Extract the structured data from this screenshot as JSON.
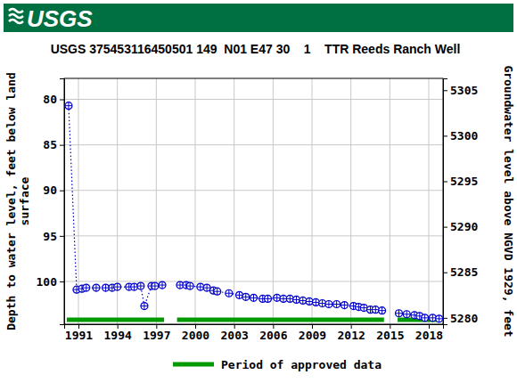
{
  "chart_data": {
    "type": "line",
    "logo_text": "USGS",
    "title": "USGS 375453116450501 149  N01 E47 30    1    TTR Reeds Ranch Well",
    "ylabel": [
      "Depth to water level, feet below land",
      "surface"
    ],
    "y2label": "Groundwater level above NGVD 1929, feet",
    "x": [
      1990.24,
      1990.86,
      1991.27,
      1991.6,
      1992.37,
      1993.1,
      1993.6,
      1994.0,
      1994.9,
      1995.3,
      1995.8,
      1996.08,
      1996.63,
      1996.9,
      1997.46,
      1998.2,
      1998.83,
      1999.3,
      1999.6,
      2000.4,
      2000.9,
      2001.4,
      2001.7,
      2002.6,
      2003.4,
      2003.9,
      2004.5,
      2005.2,
      2005.6,
      2006.3,
      2006.8,
      2007.3,
      2007.8,
      2008.3,
      2008.8,
      2009.3,
      2009.8,
      2010.3,
      2010.9,
      2011.5,
      2012.2,
      2012.6,
      2013.0,
      2013.5,
      2013.9,
      2014.4,
      2015.0,
      2015.7,
      2016.3,
      2016.9,
      2017.3,
      2017.7,
      2018.3,
      2018.8
    ],
    "series": [
      {
        "color": "#0000cc",
        "marker": "circle-plus",
        "line_style": "dotted",
        "values": [
          80.7,
          100.9,
          100.8,
          100.7,
          100.7,
          100.7,
          100.7,
          100.6,
          100.6,
          100.6,
          100.5,
          102.7,
          100.5,
          100.5,
          100.4,
          null,
          100.4,
          100.4,
          100.5,
          100.6,
          100.7,
          101.0,
          101.1,
          101.3,
          101.5,
          101.7,
          101.8,
          101.9,
          101.9,
          101.8,
          101.9,
          101.9,
          102.0,
          102.1,
          102.2,
          102.3,
          102.4,
          102.5,
          102.5,
          102.6,
          102.7,
          102.8,
          102.9,
          103.1,
          103.1,
          103.2,
          null,
          103.5,
          103.6,
          103.7,
          103.8,
          104.0,
          104.0,
          104.1
        ]
      }
    ],
    "approved_periods": {
      "name": "Period of approved data",
      "color": "#009900",
      "ranges": [
        [
          1990.1,
          1997.6
        ],
        [
          1998.6,
          2014.55
        ],
        [
          2015.6,
          2018.95
        ]
      ]
    },
    "xlim": [
      1989.9,
      2019.1
    ],
    "xticks": [
      1991,
      1994,
      1997,
      2000,
      2003,
      2006,
      2009,
      2012,
      2015,
      2018
    ],
    "ylim": [
      104.7,
      77.7
    ],
    "yticks": [
      80,
      85,
      90,
      95,
      100
    ],
    "y2lim": [
      5279.3,
      5306.3
    ],
    "y2ticks": [
      5280,
      5285,
      5290,
      5295,
      5300,
      5305
    ],
    "grid": true
  }
}
